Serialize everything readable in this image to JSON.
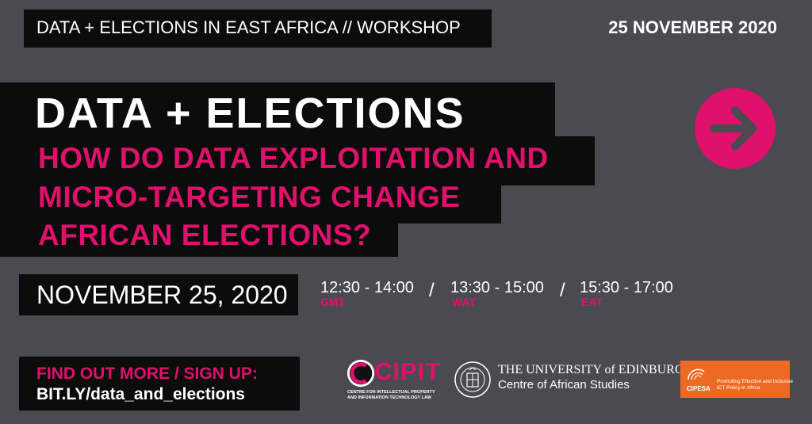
{
  "header": {
    "event_label": "DATA + ELECTIONS IN EAST AFRICA // WORKSHOP",
    "date": "25 NOVEMBER 2020"
  },
  "headline": {
    "title": "DATA + ELECTIONS",
    "question_lines": [
      "HOW DO DATA EXPLOITATION AND",
      "MICRO-TARGETING CHANGE",
      "AFRICAN ELECTIONS?"
    ]
  },
  "schedule": {
    "date": "NOVEMBER 25, 2020",
    "separator": "/",
    "slots": [
      {
        "time": "12:30 - 14:00",
        "zone": "GMT"
      },
      {
        "time": "13:30 - 15:00",
        "zone": "WAT"
      },
      {
        "time": "15:30 - 17:00",
        "zone": "EAT"
      }
    ]
  },
  "cta": {
    "label": "FIND OUT MORE / SIGN UP:",
    "link": "BIT.LY/data_and_elections"
  },
  "logos": {
    "cipit": {
      "name": "CIPIT",
      "subtitle_lines": [
        "CENTRE FOR INTELLECTUAL PROPERTY",
        "AND INFORMATION TECHNOLOGY LAW"
      ]
    },
    "edinburgh": {
      "line1": "THE UNIVERSITY of EDINBURGH",
      "line2": "Centre of African Studies"
    },
    "cipesa": {
      "name": "CIPESA",
      "tagline_lines": [
        "Promoting Effective and Inclusive",
        "ICT Policy in Africa"
      ]
    }
  },
  "colors": {
    "background": "#4a4a50",
    "band": "#0c0c0c",
    "accent": "#e0116c",
    "cipesa_orange": "#ec6a24"
  },
  "icons": {
    "arrow": "arrow-right-circle-icon"
  }
}
